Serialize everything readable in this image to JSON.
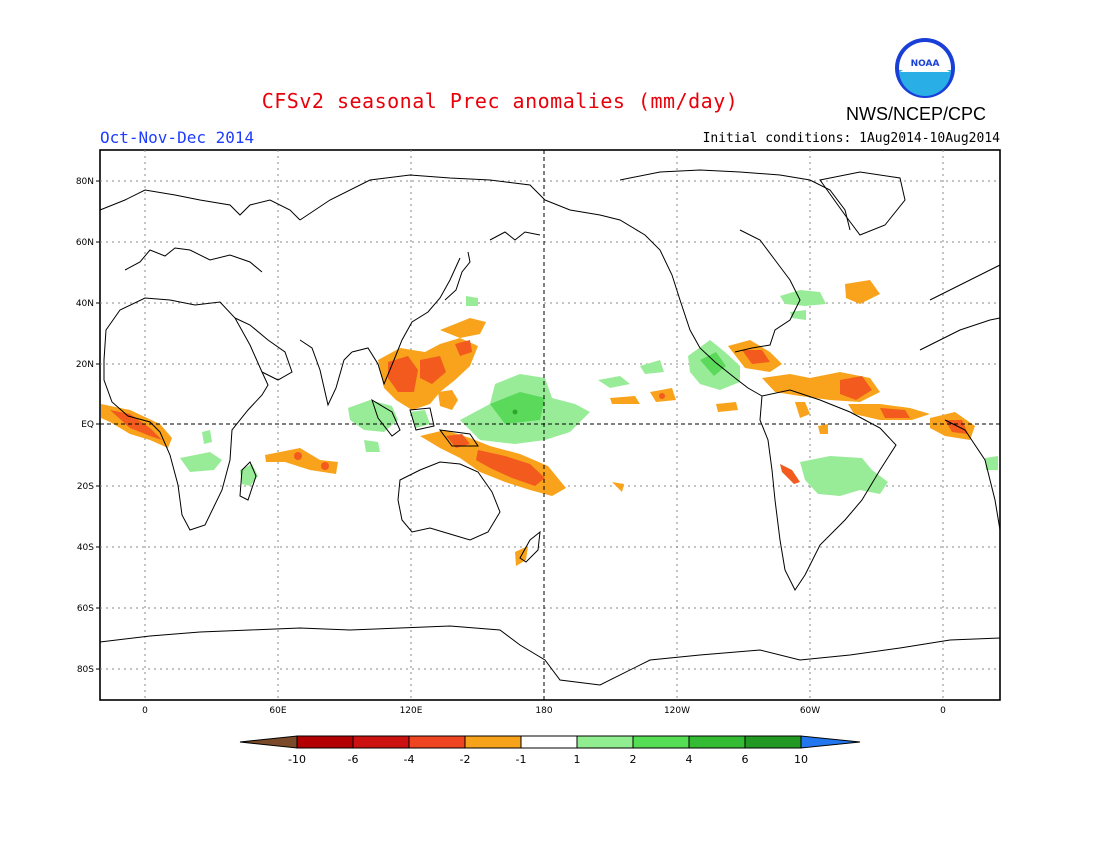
{
  "header": {
    "title": "CFSv2 seasonal Prec anomalies (mm/day)",
    "period": "Oct-Nov-Dec 2014",
    "initial_conditions": "Initial conditions: 1Aug2014-10Aug2014",
    "agency": "NWS/NCEP/CPC",
    "logo_text": "NOAA"
  },
  "map": {
    "lat_labels": [
      "80N",
      "60N",
      "40N",
      "20N",
      "EQ",
      "20S",
      "40S",
      "60S",
      "80S"
    ],
    "lon_labels": [
      "0",
      "60E",
      "120E",
      "180",
      "120W",
      "60W",
      "0"
    ],
    "lat_values": [
      80,
      60,
      40,
      20,
      0,
      -20,
      -40,
      -60,
      -80
    ],
    "lon_values": [
      0,
      60,
      120,
      180,
      240,
      300,
      360
    ]
  },
  "colorbar": {
    "labels": [
      "-10",
      "-6",
      "-4",
      "-2",
      "-1",
      "1",
      "2",
      "4",
      "6",
      "10"
    ],
    "colors": [
      "#7a4a2a",
      "#b30000",
      "#cc1111",
      "#ee4422",
      "#f7a21b",
      "#ffffff",
      "#90ee90",
      "#55dd55",
      "#33bb33",
      "#229922",
      "#2277ee"
    ]
  },
  "colors": {
    "strong_wet": "#2ea62e",
    "wet": "#5ad95a",
    "light_wet": "#98ec98",
    "light_dry": "#f8a31b",
    "dry": "#f25a1e",
    "strong_dry": "#e02a12"
  }
}
